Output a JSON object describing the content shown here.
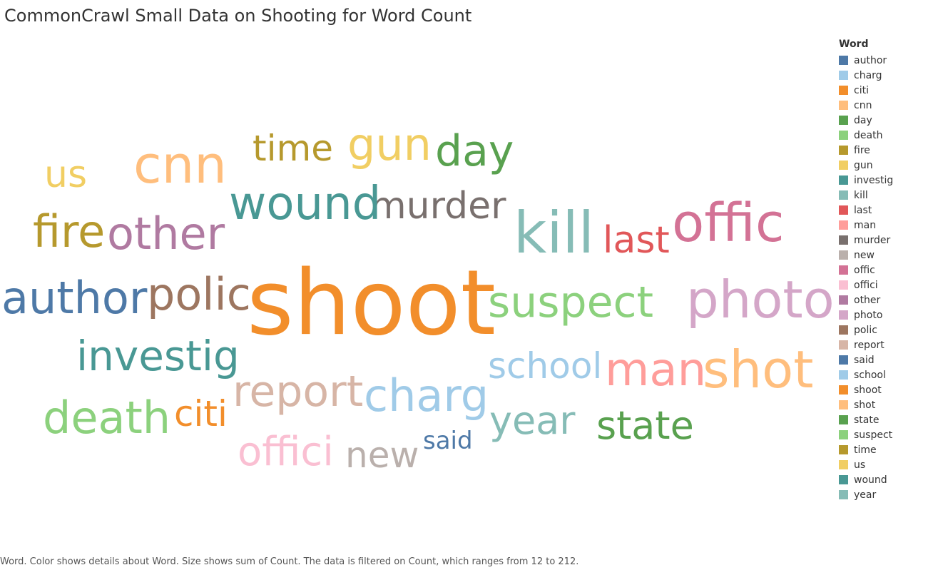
{
  "title": "CommonCrawl Small Data on Shooting for Word Count",
  "caption": "Word.  Color shows details about Word.  Size shows sum of Count. The data is filtered on Count, which ranges from 12 to 212.",
  "chart_data": {
    "type": "wordcloud",
    "title": "CommonCrawl Small Data on Shooting for Word Count",
    "legend": {
      "title": "Word",
      "placement": "right"
    },
    "filter_range": [
      12,
      212
    ],
    "words": [
      {
        "word": "author",
        "count": 50,
        "color": "#4e79a7"
      },
      {
        "word": "charg",
        "count": 50,
        "color": "#a0cbe8"
      },
      {
        "word": "citi",
        "count": 38,
        "color": "#f28e2b"
      },
      {
        "word": "cnn",
        "count": 58,
        "color": "#ffbe7d"
      },
      {
        "word": "day",
        "count": 45,
        "color": "#59a14f"
      },
      {
        "word": "death",
        "count": 50,
        "color": "#8cd17d"
      },
      {
        "word": "fire",
        "count": 48,
        "color": "#b6992d"
      },
      {
        "word": "gun",
        "count": 47,
        "color": "#f1ce63"
      },
      {
        "word": "investig",
        "count": 45,
        "color": "#499894"
      },
      {
        "word": "kill",
        "count": 65,
        "color": "#86bcb6"
      },
      {
        "word": "last",
        "count": 43,
        "color": "#e15759"
      },
      {
        "word": "man",
        "count": 50,
        "color": "#ff9d9a"
      },
      {
        "word": "murder",
        "count": 43,
        "color": "#79706e"
      },
      {
        "word": "new",
        "count": 37,
        "color": "#bab0ac"
      },
      {
        "word": "offic",
        "count": 62,
        "color": "#d37295"
      },
      {
        "word": "offici",
        "count": 45,
        "color": "#fabfd2"
      },
      {
        "word": "other",
        "count": 48,
        "color": "#b07aa1"
      },
      {
        "word": "photo",
        "count": 60,
        "color": "#d4a6c8"
      },
      {
        "word": "polic",
        "count": 46,
        "color": "#9d7660"
      },
      {
        "word": "report",
        "count": 46,
        "color": "#d7b5a6"
      },
      {
        "word": "said",
        "count": 25,
        "color": "#4e79a7"
      },
      {
        "word": "school",
        "count": 40,
        "color": "#a0cbe8"
      },
      {
        "word": "shoot",
        "count": 212,
        "color": "#f28e2b"
      },
      {
        "word": "shot",
        "count": 57,
        "color": "#ffbe7d"
      },
      {
        "word": "state",
        "count": 45,
        "color": "#59a14f"
      },
      {
        "word": "suspect",
        "count": 48,
        "color": "#8cd17d"
      },
      {
        "word": "time",
        "count": 44,
        "color": "#b6992d"
      },
      {
        "word": "us",
        "count": 44,
        "color": "#f1ce63"
      },
      {
        "word": "wound",
        "count": 56,
        "color": "#499894"
      },
      {
        "word": "year",
        "count": 45,
        "color": "#86bcb6"
      }
    ]
  }
}
